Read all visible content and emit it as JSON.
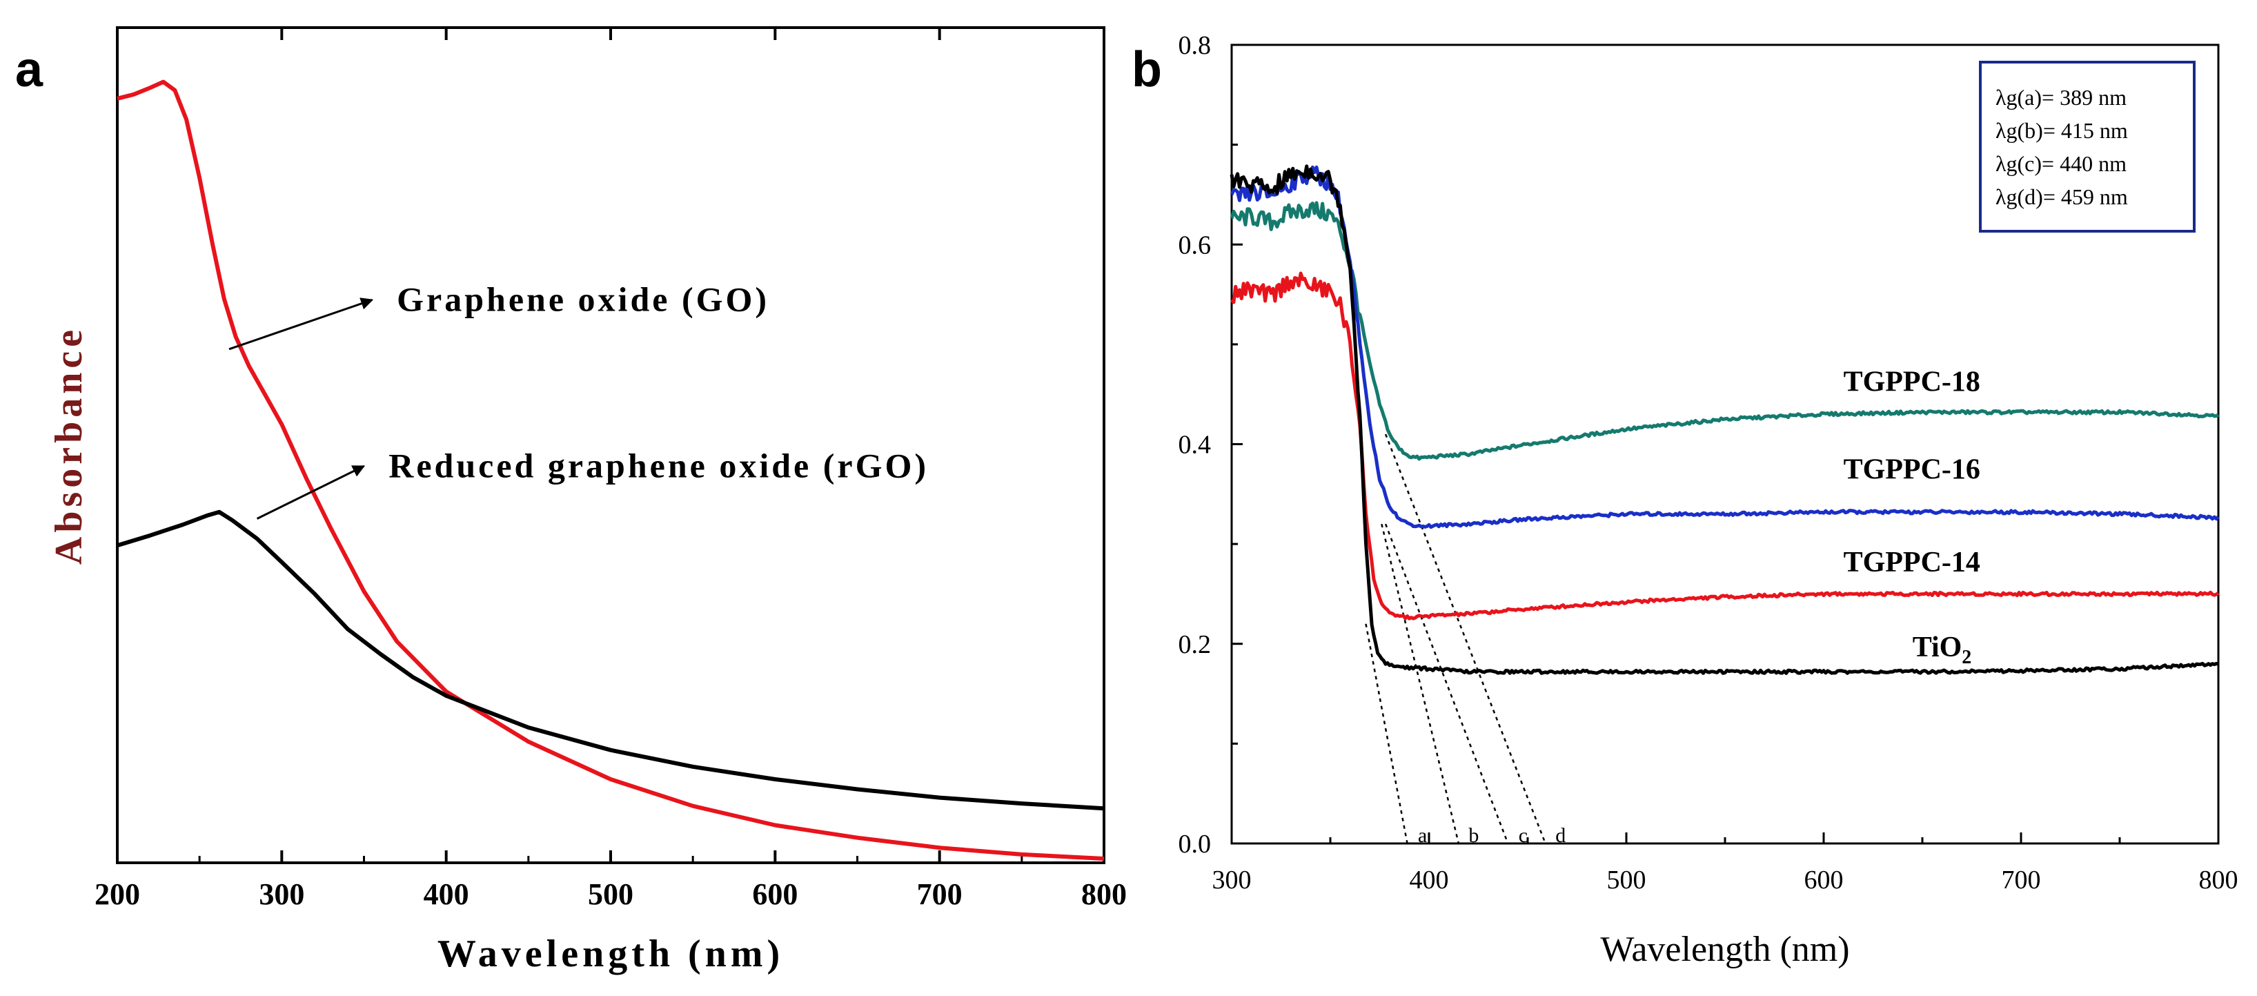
{
  "panel_a_label": "a",
  "panel_b_label": "b",
  "chart_data": [
    {
      "type": "line",
      "panel": "a",
      "title": "",
      "xlabel": "Wavelength (nm)",
      "ylabel": "Absorbance",
      "xlim": [
        200,
        800
      ],
      "ylim": [
        0,
        1
      ],
      "x_ticks": [
        200,
        300,
        400,
        500,
        600,
        700,
        800
      ],
      "y_ticks_shown": false,
      "grid": false,
      "annotations": [
        {
          "text": "Graphene oxide (GO)",
          "arrow_from_x": 268,
          "arrow_from_y": 0.615,
          "arrow_to_x": 355,
          "arrow_to_y": 0.674,
          "text_x": 370,
          "text_y": 0.674
        },
        {
          "text": "Reduced graphene oxide (rGO)",
          "arrow_from_x": 285,
          "arrow_from_y": 0.412,
          "arrow_to_x": 350,
          "arrow_to_y": 0.475,
          "text_x": 365,
          "text_y": 0.475
        }
      ],
      "series": [
        {
          "name": "Graphene oxide (GO)",
          "color": "#e8141c",
          "x": [
            200,
            210,
            220,
            228,
            235,
            242,
            250,
            258,
            265,
            272,
            280,
            290,
            300,
            315,
            330,
            350,
            370,
            400,
            450,
            500,
            550,
            600,
            650,
            700,
            750,
            800
          ],
          "y": [
            0.915,
            0.92,
            0.928,
            0.935,
            0.925,
            0.89,
            0.82,
            0.74,
            0.675,
            0.63,
            0.595,
            0.56,
            0.525,
            0.46,
            0.4,
            0.325,
            0.265,
            0.205,
            0.145,
            0.1,
            0.068,
            0.045,
            0.03,
            0.018,
            0.01,
            0.005
          ]
        },
        {
          "name": "Reduced graphene oxide (rGO)",
          "color": "#000000",
          "x": [
            200,
            220,
            240,
            255,
            262,
            270,
            285,
            300,
            320,
            340,
            360,
            380,
            400,
            450,
            500,
            550,
            600,
            650,
            700,
            750,
            800
          ],
          "y": [
            0.38,
            0.392,
            0.405,
            0.416,
            0.42,
            0.41,
            0.388,
            0.36,
            0.322,
            0.28,
            0.25,
            0.222,
            0.2,
            0.162,
            0.135,
            0.115,
            0.1,
            0.088,
            0.078,
            0.071,
            0.065
          ]
        }
      ]
    },
    {
      "type": "line",
      "panel": "b",
      "title": "",
      "xlabel": "Wavelength (nm)",
      "ylabel": "",
      "xlim": [
        300,
        800
      ],
      "ylim": [
        0.0,
        0.8
      ],
      "x_ticks": [
        300,
        400,
        500,
        600,
        700,
        800
      ],
      "y_ticks": [
        0.0,
        0.2,
        0.4,
        0.6,
        0.8
      ],
      "y_tick_labels": [
        "0.0",
        "0.2",
        "0.4",
        "0.6",
        "0.8"
      ],
      "grid": false,
      "legend_box": {
        "placement": "top-right",
        "lines": [
          "λg(a)= 389 nm",
          "λg(b)= 415 nm",
          "λg(c)= 440 nm",
          "λg(d)= 459 nm"
        ]
      },
      "series": [
        {
          "name": "TGPPC-18",
          "label": "TGPPC-18",
          "label_x": 610,
          "label_y": 0.463,
          "color": "#157a6e",
          "x": [
            300,
            310,
            320,
            330,
            340,
            350,
            355,
            360,
            365,
            370,
            375,
            380,
            385,
            390,
            395,
            400,
            420,
            450,
            500,
            550,
            600,
            650,
            700,
            750,
            780,
            800
          ],
          "y": [
            0.625,
            0.628,
            0.622,
            0.632,
            0.636,
            0.63,
            0.615,
            0.58,
            0.53,
            0.48,
            0.44,
            0.41,
            0.395,
            0.388,
            0.386,
            0.387,
            0.39,
            0.4,
            0.415,
            0.425,
            0.43,
            0.432,
            0.432,
            0.432,
            0.43,
            0.428
          ]
        },
        {
          "name": "TGPPC-16",
          "label": "TGPPC-16",
          "label_x": 610,
          "label_y": 0.375,
          "color": "#1a2fc8",
          "x": [
            300,
            310,
            320,
            330,
            340,
            350,
            355,
            360,
            365,
            370,
            375,
            380,
            385,
            390,
            395,
            400,
            420,
            450,
            500,
            550,
            600,
            650,
            700,
            750,
            780,
            800
          ],
          "y": [
            0.645,
            0.652,
            0.65,
            0.662,
            0.672,
            0.662,
            0.64,
            0.58,
            0.5,
            0.42,
            0.365,
            0.338,
            0.325,
            0.32,
            0.318,
            0.318,
            0.32,
            0.325,
            0.33,
            0.33,
            0.332,
            0.332,
            0.332,
            0.33,
            0.328,
            0.326
          ]
        },
        {
          "name": "TGPPC-14",
          "label": "TGPPC-14",
          "label_x": 610,
          "label_y": 0.282,
          "color": "#e8141c",
          "x": [
            300,
            310,
            320,
            330,
            340,
            350,
            355,
            360,
            365,
            368,
            372,
            376,
            380,
            385,
            390,
            400,
            420,
            450,
            500,
            550,
            600,
            650,
            700,
            750,
            780,
            800
          ],
          "y": [
            0.55,
            0.555,
            0.548,
            0.565,
            0.56,
            0.552,
            0.54,
            0.5,
            0.42,
            0.33,
            0.265,
            0.24,
            0.23,
            0.228,
            0.226,
            0.228,
            0.23,
            0.235,
            0.242,
            0.247,
            0.25,
            0.25,
            0.25,
            0.25,
            0.25,
            0.25
          ]
        },
        {
          "name": "TiO2",
          "label": "TiO",
          "label_sub": "2",
          "label_x": 645,
          "label_y": 0.197,
          "color": "#000000",
          "x": [
            300,
            310,
            320,
            330,
            340,
            350,
            355,
            360,
            365,
            368,
            371,
            374,
            378,
            382,
            390,
            400,
            420,
            450,
            500,
            550,
            600,
            650,
            700,
            750,
            780,
            800
          ],
          "y": [
            0.665,
            0.66,
            0.655,
            0.67,
            0.675,
            0.665,
            0.64,
            0.58,
            0.43,
            0.3,
            0.22,
            0.19,
            0.18,
            0.178,
            0.176,
            0.175,
            0.172,
            0.172,
            0.172,
            0.172,
            0.172,
            0.172,
            0.173,
            0.175,
            0.178,
            0.18
          ]
        }
      ],
      "tangent_lines": [
        {
          "label": "a",
          "from": [
            368,
            0.22
          ],
          "to": [
            389,
            0.0
          ]
        },
        {
          "label": "b",
          "from": [
            376,
            0.32
          ],
          "to": [
            415,
            0.0
          ]
        },
        {
          "label": "c",
          "from": [
            378,
            0.32
          ],
          "to": [
            440,
            0.0
          ]
        },
        {
          "label": "d",
          "from": [
            378,
            0.41
          ],
          "to": [
            459,
            0.0
          ]
        }
      ]
    }
  ]
}
